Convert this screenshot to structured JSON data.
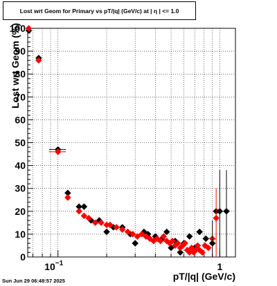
{
  "chart_data": {
    "type": "scatter",
    "title": "Lost wrt Geom for Primary vs pT/|q| (GeV/c) at |  η  | <= 1.0",
    "xlabel": "pT/|q| (GeV/c)",
    "ylabel": "Lost wrt Geom (%)",
    "x_scale": "log",
    "xlim": [
      0.065,
      1.25
    ],
    "ylim": [
      0,
      100
    ],
    "y_ticks": [
      0,
      10,
      20,
      30,
      40,
      50,
      60,
      70,
      80,
      90,
      100
    ],
    "y_tick_labels": [
      "0",
      "10",
      "20",
      "30",
      "40",
      "50",
      "60",
      "70",
      "80",
      "90",
      "100"
    ],
    "x_tick_labels": [
      {
        "value": 0.1,
        "base": "10",
        "exponent": "−1"
      },
      {
        "value": 1,
        "base": "1",
        "exponent": ""
      }
    ],
    "grid": true,
    "colors": {
      "black_series": "#000000",
      "red_series": "#ff0000"
    },
    "series": [
      {
        "color": "#000000",
        "points": [
          [
            0.066,
            99,
            0.002
          ],
          [
            0.076,
            87,
            0.003
          ],
          [
            0.1,
            47,
            0.012
          ],
          [
            0.115,
            28,
            0
          ],
          [
            0.135,
            22,
            0.005
          ],
          [
            0.145,
            22,
            0
          ],
          [
            0.16,
            16,
            0
          ],
          [
            0.18,
            16,
            0
          ],
          [
            0.2,
            11,
            0
          ],
          [
            0.22,
            13,
            0
          ],
          [
            0.25,
            13,
            0
          ],
          [
            0.28,
            10,
            0
          ],
          [
            0.3,
            6,
            0
          ],
          [
            0.34,
            11,
            0
          ],
          [
            0.36,
            10,
            0
          ],
          [
            0.4,
            9,
            0
          ],
          [
            0.44,
            8,
            0
          ],
          [
            0.47,
            11,
            0
          ],
          [
            0.5,
            4,
            0
          ],
          [
            0.53,
            7,
            0
          ],
          [
            0.57,
            2,
            0
          ],
          [
            0.6,
            6,
            0
          ],
          [
            0.65,
            9,
            0
          ],
          [
            0.7,
            4,
            0
          ],
          [
            0.75,
            11,
            0
          ],
          [
            0.82,
            8,
            0
          ],
          [
            0.9,
            6,
            0
          ],
          [
            0.95,
            20,
            0
          ],
          [
            1.0,
            20,
            0
          ],
          [
            1.1,
            20,
            0
          ]
        ]
      },
      {
        "color": "#ff0000",
        "points": [
          [
            0.066,
            100,
            0.002
          ],
          [
            0.076,
            86,
            0.003
          ],
          [
            0.1,
            46,
            0.012
          ],
          [
            0.115,
            26,
            0
          ],
          [
            0.135,
            20,
            0.005
          ],
          [
            0.145,
            18,
            0
          ],
          [
            0.155,
            17,
            0
          ],
          [
            0.17,
            15,
            0
          ],
          [
            0.185,
            15,
            0
          ],
          [
            0.2,
            14,
            0
          ],
          [
            0.21,
            14,
            0
          ],
          [
            0.23,
            13,
            0
          ],
          [
            0.25,
            12,
            0
          ],
          [
            0.27,
            11,
            0
          ],
          [
            0.29,
            10,
            0
          ],
          [
            0.31,
            9,
            0
          ],
          [
            0.33,
            10,
            0
          ],
          [
            0.35,
            9,
            0
          ],
          [
            0.37,
            8,
            0
          ],
          [
            0.39,
            7,
            0
          ],
          [
            0.41,
            8,
            0
          ],
          [
            0.43,
            7,
            0
          ],
          [
            0.45,
            9,
            0
          ],
          [
            0.47,
            7,
            0
          ],
          [
            0.49,
            6,
            0
          ],
          [
            0.51,
            7,
            0
          ],
          [
            0.53,
            5,
            0
          ],
          [
            0.55,
            6,
            0
          ],
          [
            0.57,
            4,
            0
          ],
          [
            0.59,
            5,
            0
          ],
          [
            0.61,
            6,
            0
          ],
          [
            0.63,
            3,
            0
          ],
          [
            0.65,
            2,
            0
          ],
          [
            0.67,
            4,
            0
          ],
          [
            0.69,
            2,
            0
          ],
          [
            0.71,
            3,
            0
          ],
          [
            0.73,
            5,
            0
          ],
          [
            0.75,
            3,
            0
          ],
          [
            0.78,
            2,
            0
          ],
          [
            0.81,
            5,
            0
          ],
          [
            0.85,
            4,
            0
          ],
          [
            0.9,
            8,
            0
          ],
          [
            0.95,
            17,
            0
          ]
        ]
      }
    ]
  },
  "timestamp": "Sun Jun 29 06:48:57 2025"
}
